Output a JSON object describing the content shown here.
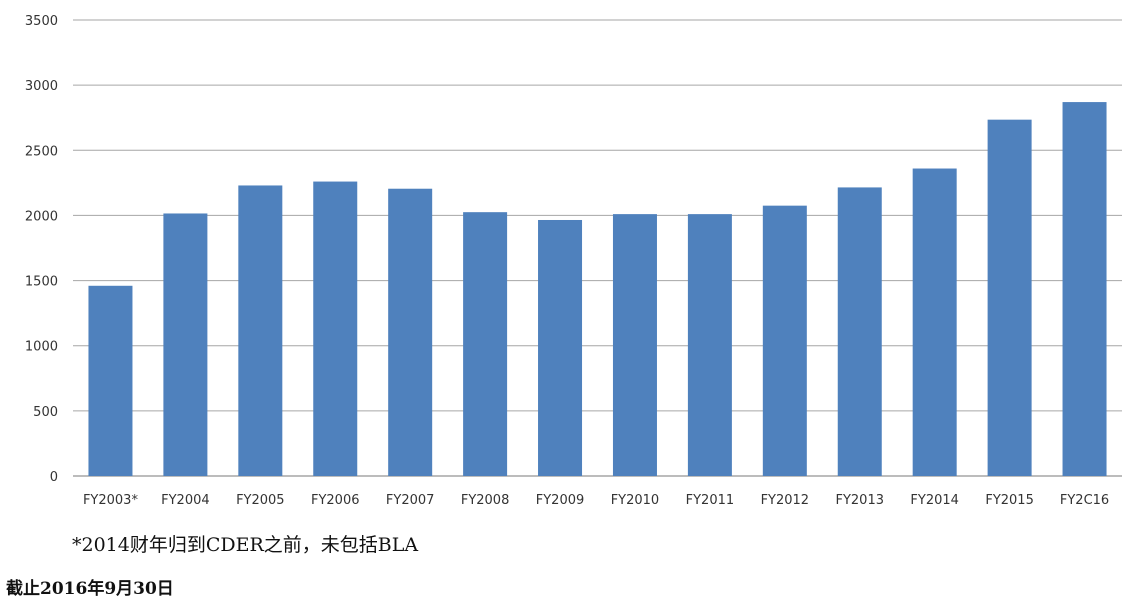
{
  "chart_data": {
    "type": "bar",
    "categories": [
      "FY2003*",
      "FY2004",
      "FY2005",
      "FY2006",
      "FY2007",
      "FY2008",
      "FY2009",
      "FY2010",
      "FY2011",
      "FY2012",
      "FY2013",
      "FY2014",
      "FY2015",
      "FY2C16"
    ],
    "values": [
      1460,
      2015,
      2230,
      2260,
      2205,
      2025,
      1965,
      2010,
      2010,
      2075,
      2215,
      2360,
      2735,
      2870
    ],
    "ylim": [
      0,
      3500
    ],
    "yticks": [
      0,
      500,
      1000,
      1500,
      2000,
      2500,
      3000,
      3500
    ],
    "grid": true,
    "bar_color": "#4F81BD",
    "grid_color": "#A6A6A6"
  },
  "footnote": "*2014财年归到CDER之前，未包括BLA",
  "as_of": "截止2016年9月30日"
}
